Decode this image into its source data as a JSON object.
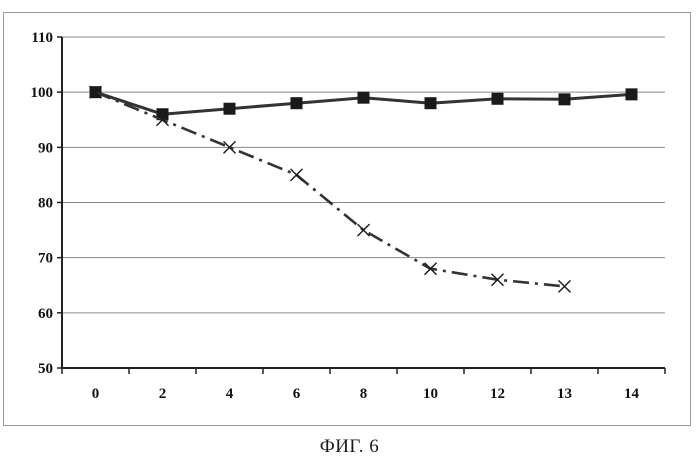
{
  "caption": "ФИГ. 6",
  "chart_data": {
    "type": "line",
    "title": "",
    "xlabel": "",
    "ylabel": "",
    "categories": [
      "0",
      "2",
      "4",
      "6",
      "8",
      "10",
      "12",
      "13",
      "14"
    ],
    "ylim": [
      50,
      110
    ],
    "yticks": [
      50,
      60,
      70,
      80,
      90,
      100,
      110
    ],
    "grid": true,
    "legend": "none",
    "series": [
      {
        "marker": "square",
        "line_style": "solid",
        "color": "#333333",
        "values": [
          100,
          96,
          97,
          98,
          99,
          98,
          98.8,
          98.7,
          99.6
        ]
      },
      {
        "marker": "x",
        "line_style": "dash-dot",
        "color": "#333333",
        "values": [
          100,
          95,
          90,
          85,
          75,
          68,
          66,
          64.8,
          null
        ]
      }
    ]
  }
}
